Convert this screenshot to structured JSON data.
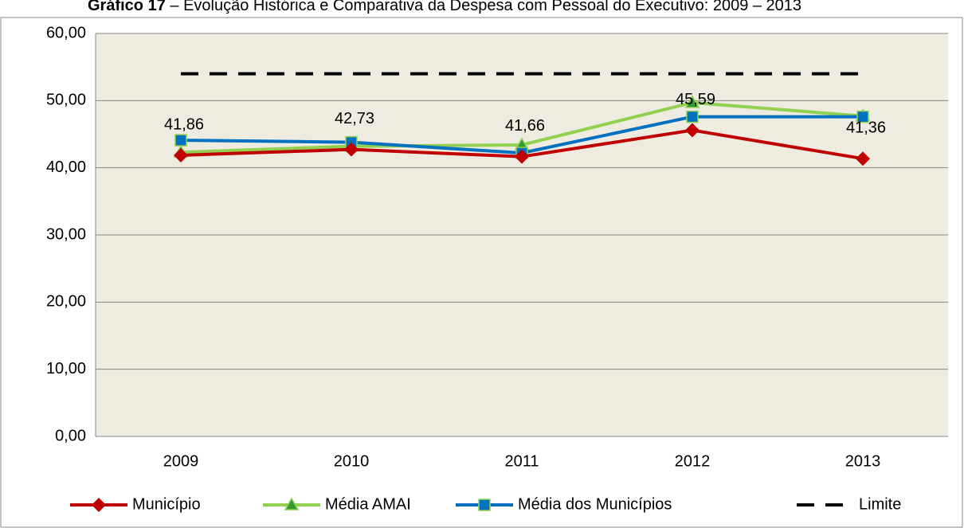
{
  "chart_data": {
    "type": "line",
    "title": "Gráfico 17",
    "subtitle": " – Evolução Histórica e Comparativa da Despesa com Pessoal do Executivo: 2009 – 2013",
    "categories": [
      "2009",
      "2010",
      "2011",
      "2012",
      "2013"
    ],
    "series": [
      {
        "name": "Município",
        "color": "#c00000",
        "marker": "diamond",
        "values": [
          41.86,
          42.73,
          41.66,
          45.59,
          41.36
        ],
        "value_labels": [
          "41,86",
          "42,73",
          "41,66",
          "45,59",
          "41,36"
        ]
      },
      {
        "name": "Média AMAI",
        "color": "#92d050",
        "marker": "triangle",
        "values": [
          42.3,
          43.2,
          43.4,
          49.7,
          47.7
        ]
      },
      {
        "name": "Média dos Municípios",
        "color": "#0070c0",
        "marker": "square",
        "values": [
          44.1,
          43.8,
          42.2,
          47.6,
          47.6
        ]
      },
      {
        "name": "Limite",
        "color": "#000000",
        "dashed": true,
        "values": [
          54,
          54,
          54,
          54,
          54
        ]
      }
    ],
    "ylim": [
      0,
      60
    ],
    "yticks": [
      {
        "value": 0,
        "label": "0,00"
      },
      {
        "value": 10,
        "label": "10,00"
      },
      {
        "value": 20,
        "label": "20,00"
      },
      {
        "value": 30,
        "label": "30,00"
      },
      {
        "value": 40,
        "label": "40,00"
      },
      {
        "value": 50,
        "label": "50,00"
      },
      {
        "value": 60,
        "label": "60,00"
      }
    ],
    "grid": true,
    "legend": "bottom"
  }
}
